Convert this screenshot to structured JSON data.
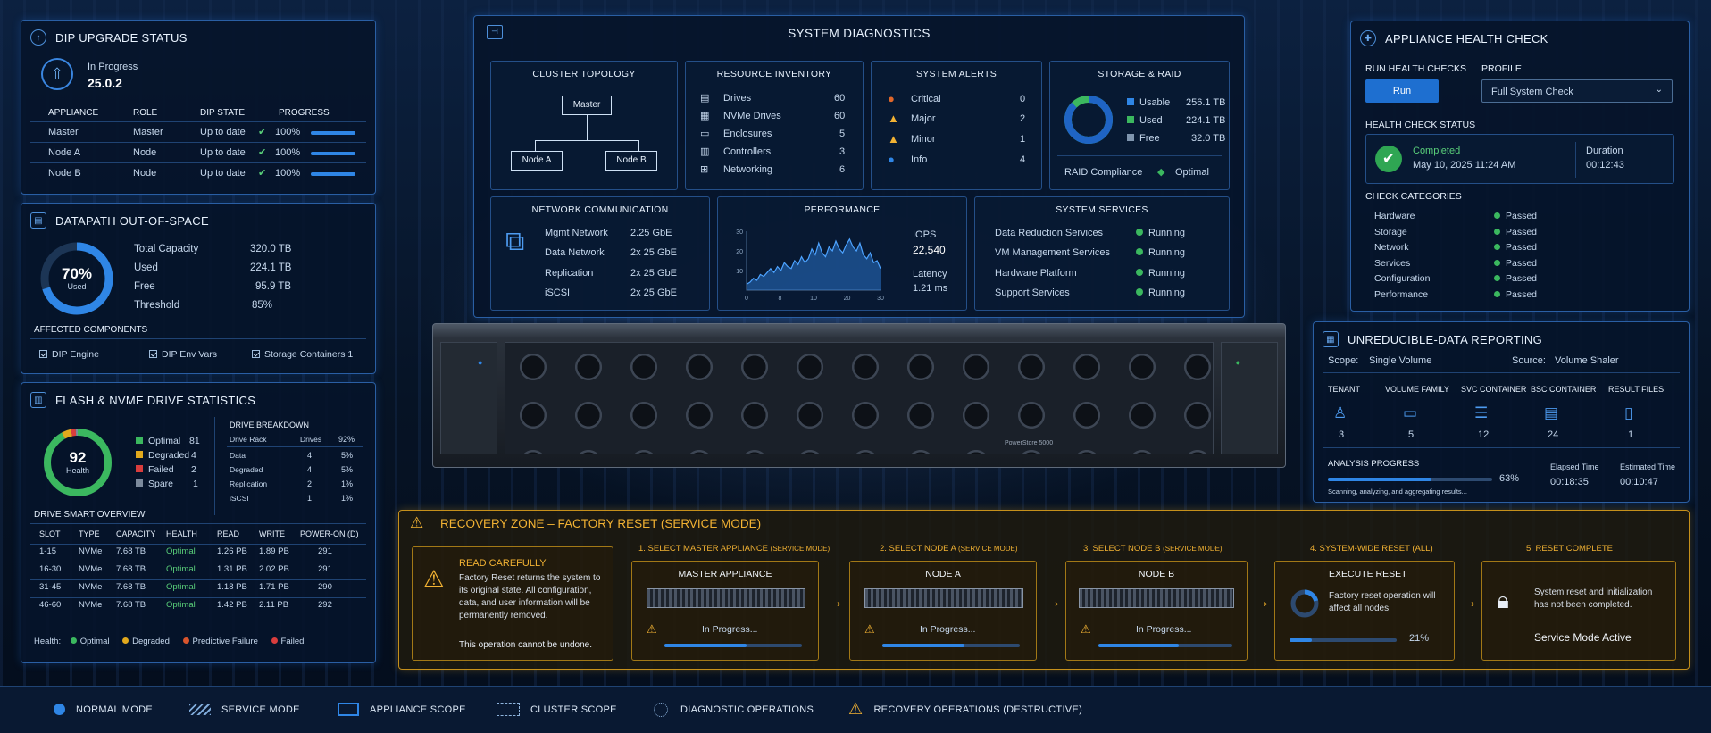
{
  "dip": {
    "title": "DIP UPGRADE STATUS",
    "state": "In Progress",
    "version": "25.0.2",
    "headers": [
      "APPLIANCE",
      "ROLE",
      "DIP STATE",
      "PROGRESS"
    ],
    "rows": [
      [
        "Master",
        "Master",
        "Up to date",
        "100%"
      ],
      [
        "Node A",
        "Node",
        "Up to date",
        "100%"
      ],
      [
        "Node B",
        "Node",
        "Up to date",
        "100%"
      ]
    ],
    "progress": [
      1.0,
      1.0,
      1.0
    ]
  },
  "datapath": {
    "title": "DATAPATH OUT-OF-SPACE",
    "pct": "70%",
    "pct_label": "Used",
    "used_fraction": 0.7,
    "rows": [
      [
        "Total Capacity",
        "320.0 TB"
      ],
      [
        "Used",
        "224.1 TB"
      ],
      [
        "Free",
        "95.9 TB"
      ],
      [
        "Threshold",
        "85%"
      ]
    ],
    "affected_title": "AFFECTED COMPONENTS",
    "affected": [
      "DIP Engine",
      "DIP Env Vars",
      "Storage Containers 1"
    ]
  },
  "flash": {
    "title": "FLASH & NVME DRIVE STATISTICS",
    "health": "92",
    "health_label": "Health",
    "stats": [
      [
        "Optimal",
        "81"
      ],
      [
        "Degraded",
        "4"
      ],
      [
        "Failed",
        "2"
      ],
      [
        "Spare",
        "1"
      ]
    ],
    "stat_colors": [
      "#3bb85f",
      "#e2a91d",
      "#d93d3d",
      "#7c8a9c"
    ],
    "breakdown_title": "DRIVE BREAKDOWN",
    "breakdown_headers": [
      "Drive Rack",
      "Drives",
      "92%"
    ],
    "breakdown_rows": [
      [
        "Data",
        "4",
        "5%"
      ],
      [
        "Degraded",
        "4",
        "5%"
      ],
      [
        "Replication",
        "2",
        "1%"
      ],
      [
        "iSCSI",
        "1",
        "1%"
      ]
    ],
    "smart_title": "DRIVE SMART OVERVIEW",
    "smart_headers": [
      "SLOT",
      "TYPE",
      "CAPACITY",
      "HEALTH",
      "READ",
      "WRITE",
      "POWER-ON (D)"
    ],
    "smart_rows": [
      [
        "1-15",
        "NVMe",
        "7.68 TB",
        "Optimal",
        "1.26 PB",
        "1.89 PB",
        "291"
      ],
      [
        "16-30",
        "NVMe",
        "7.68 TB",
        "Optimal",
        "1.31 PB",
        "2.02 PB",
        "291"
      ],
      [
        "31-45",
        "NVMe",
        "7.68 TB",
        "Optimal",
        "1.18 PB",
        "1.71 PB",
        "290"
      ],
      [
        "46-60",
        "NVMe",
        "7.68 TB",
        "Optimal",
        "1.42 PB",
        "2.11 PB",
        "292"
      ]
    ],
    "health_legend_label": "Health:",
    "health_legend": [
      "Optimal",
      "Degraded",
      "Predictive Failure",
      "Failed"
    ]
  },
  "diag": {
    "title": "SYSTEM DIAGNOSTICS",
    "topology": {
      "title": "CLUSTER TOPOLOGY",
      "master": "Master",
      "node_a": "Node A",
      "node_b": "Node B"
    },
    "inventory": {
      "title": "RESOURCE INVENTORY",
      "rows": [
        [
          "Drives",
          "60"
        ],
        [
          "NVMe Drives",
          "60"
        ],
        [
          "Enclosures",
          "5"
        ],
        [
          "Controllers",
          "3"
        ],
        [
          "Networking",
          "6"
        ]
      ]
    },
    "alerts": {
      "title": "SYSTEM ALERTS",
      "rows": [
        [
          "Critical",
          "0"
        ],
        [
          "Major",
          "2"
        ],
        [
          "Minor",
          "1"
        ],
        [
          "Info",
          "4"
        ]
      ]
    },
    "storage": {
      "title": "STORAGE & RAID",
      "rows": [
        [
          "Usable",
          "256.1 TB"
        ],
        [
          "Used",
          "224.1 TB"
        ],
        [
          "Free",
          "32.0 TB"
        ]
      ],
      "raid_label": "RAID Compliance",
      "raid_value": "Optimal",
      "used_fraction": 0.875
    },
    "network": {
      "title": "NETWORK COMMUNICATION",
      "rows": [
        [
          "Mgmt Network",
          "2.25 GbE"
        ],
        [
          "Data Network",
          "2x 25 GbE"
        ],
        [
          "Replication",
          "2x 25 GbE"
        ],
        [
          "iSCSI",
          "2x 25 GbE"
        ]
      ]
    },
    "perf": {
      "title": "PERFORMANCE",
      "iops_label": "IOPS",
      "iops": "22,540",
      "lat_label": "Latency",
      "lat": "1.21 ms"
    },
    "services": {
      "title": "SYSTEM SERVICES",
      "rows": [
        [
          "Data Reduction Services",
          "Running"
        ],
        [
          "VM Management Services",
          "Running"
        ],
        [
          "Hardware Platform",
          "Running"
        ],
        [
          "Support Services",
          "Running"
        ]
      ]
    }
  },
  "chart_data": {
    "type": "area",
    "x_ticks": [
      "0",
      "8",
      "10",
      "20",
      "30"
    ],
    "y_ticks": [
      "30",
      "20",
      "10"
    ],
    "ylim": [
      0,
      30
    ],
    "values": [
      3,
      4,
      6,
      5,
      8,
      7,
      9,
      11,
      9,
      12,
      10,
      14,
      12,
      11,
      15,
      13,
      17,
      14,
      16,
      21,
      18,
      24,
      19,
      17,
      22,
      20,
      25,
      21,
      19,
      23,
      26,
      22,
      20,
      24,
      18,
      16,
      19,
      14,
      15,
      11
    ]
  },
  "health": {
    "title": "APPLIANCE HEALTH CHECK",
    "run_label": "RUN HEALTH CHECKS",
    "run_button": "Run",
    "profile_label": "PROFILE",
    "profile_value": "Full System Check",
    "status_label": "HEALTH CHECK STATUS",
    "completed": "Completed",
    "date": "May 10, 2025 11:24 AM",
    "duration_label": "Duration",
    "duration": "00:12:43",
    "cat_label": "CHECK CATEGORIES",
    "cats": [
      [
        "Hardware",
        "Passed"
      ],
      [
        "Storage",
        "Passed"
      ],
      [
        "Network",
        "Passed"
      ],
      [
        "Services",
        "Passed"
      ],
      [
        "Configuration",
        "Passed"
      ],
      [
        "Performance",
        "Passed"
      ]
    ]
  },
  "unred": {
    "title": "UNREDUCIBLE-DATA REPORTING",
    "scope_label": "Scope:",
    "scope": "Single Volume",
    "source_label": "Source:",
    "source": "Volume Shaler",
    "cols": [
      [
        "TENANT",
        "3"
      ],
      [
        "VOLUME FAMILY",
        "5"
      ],
      [
        "SVC CONTAINER",
        "12"
      ],
      [
        "BSC CONTAINER",
        "24"
      ],
      [
        "RESULT FILES",
        "1"
      ]
    ],
    "analysis_label": "ANALYSIS PROGRESS",
    "pct": "63%",
    "pct_fraction": 0.63,
    "scanning": "Scanning, analyzing, and aggregating results...",
    "elapsed_label": "Elapsed Time",
    "elapsed": "00:18:35",
    "est_label": "Estimated Time",
    "est": "00:10:47"
  },
  "recovery": {
    "title": "RECOVERY ZONE – FACTORY RESET (SERVICE MODE)",
    "read_title": "READ CAREFULLY",
    "read_text": "Factory Reset returns the system to its original state. All configuration, data, and user information will be permanently removed.",
    "read_warn": "This operation cannot be undone.",
    "step1": {
      "head": "1. SELECT MASTER APPLIANCE",
      "head_small": "(SERVICE MODE)",
      "name": "MASTER APPLIANCE",
      "status": "In Progress...",
      "progress": 0.6
    },
    "step2": {
      "head": "2. SELECT NODE A",
      "head_small": "(SERVICE MODE)",
      "name": "NODE A",
      "status": "In Progress...",
      "progress": 0.6
    },
    "step3": {
      "head": "3. SELECT NODE B",
      "head_small": "(SERVICE MODE)",
      "name": "NODE B",
      "status": "In Progress...",
      "progress": 0.6
    },
    "step4": {
      "head": "4. SYSTEM-WIDE RESET (ALL)",
      "name": "EXECUTE RESET",
      "text": "Factory reset operation will affect all nodes.",
      "pct": "21%",
      "progress": 0.21
    },
    "step5": {
      "head": "5. RESET COMPLETE",
      "text": "System reset and initialization has not been completed.",
      "status": "Service Mode Active"
    }
  },
  "server": {
    "brand": "PowerStore 5000"
  },
  "legend": [
    "NORMAL MODE",
    "SERVICE MODE",
    "APPLIANCE SCOPE",
    "CLUSTER SCOPE",
    "DIAGNOSTIC OPERATIONS",
    "RECOVERY OPERATIONS (DESTRUCTIVE)"
  ]
}
